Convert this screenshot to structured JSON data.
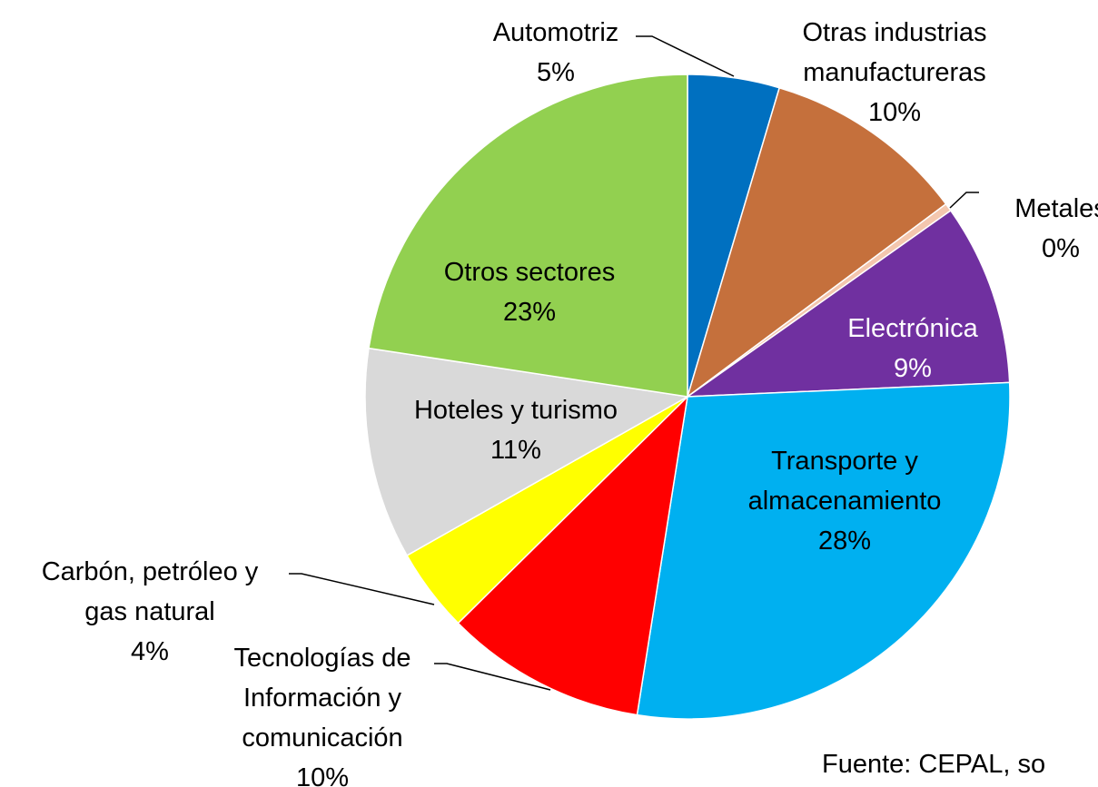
{
  "chart_data": {
    "type": "pie",
    "categories": [
      "Automotriz",
      "Otras industrias manufactureras",
      "Metales",
      "Electrónica",
      "Transporte y almacenamiento",
      "Tecnologías de Información y comunicación",
      "Carbón, petróleo y gas natural",
      "Hoteles y turismo",
      "Otros sectores"
    ],
    "values": [
      4.6,
      10.2,
      0.4,
      9.1,
      28.2,
      10.1,
      4.2,
      10.6,
      22.6
    ],
    "value_labels": [
      "5%",
      "10%",
      "0%",
      "9%",
      "28%",
      "10%",
      "4%",
      "11%",
      "23%"
    ],
    "colors": [
      "#0070c0",
      "#c5703c",
      "#f4c7ae",
      "#7030a0",
      "#00b0f0",
      "#ff0000",
      "#ffff00",
      "#d9d9d9",
      "#92d050"
    ],
    "source": "Fuente: CEPAL, so"
  }
}
